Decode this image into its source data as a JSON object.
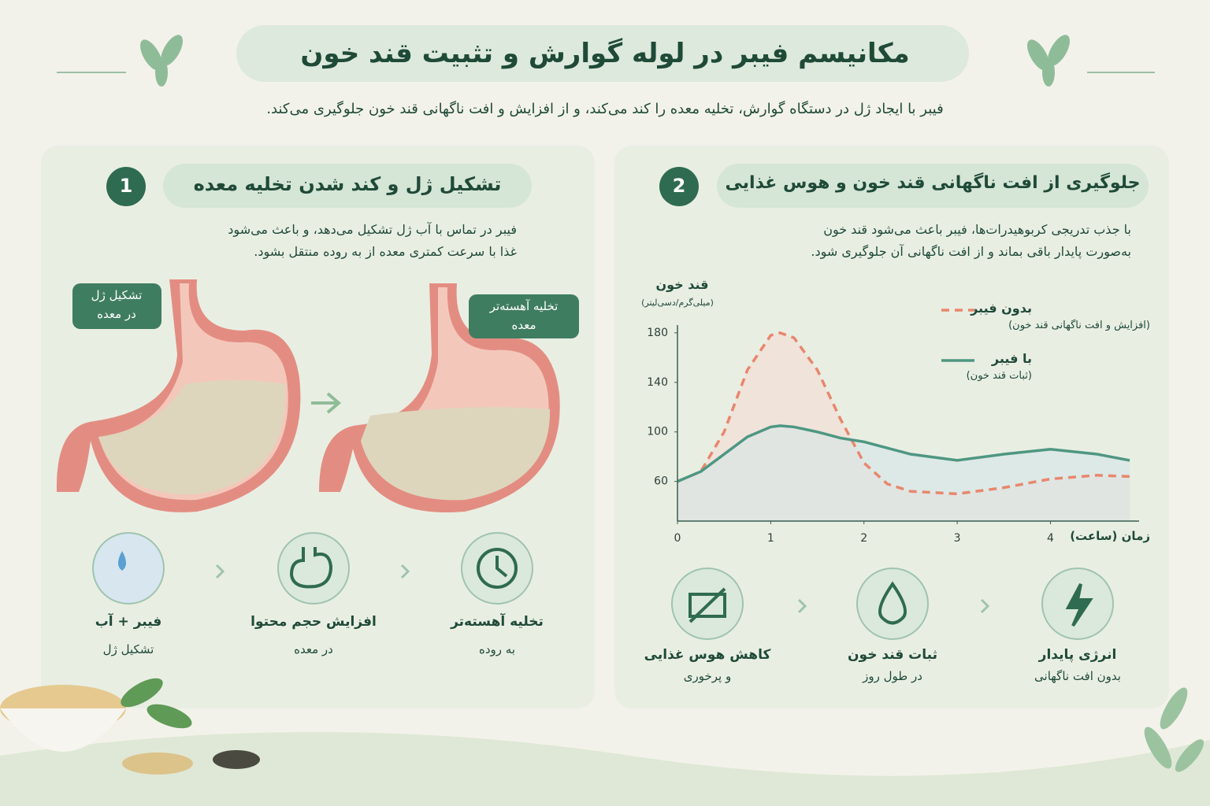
{
  "header": {
    "title": "مکانیسم فیبر در لوله گوارش و تثبیت قند خون",
    "subtitle": "فیبر با ایجاد ژل در دستگاه گوارش، تخلیه معده را کند می‌کند، و از افزایش و افت ناگهانی قند خون جلوگیری می‌کند."
  },
  "panels": [
    {
      "number": "1",
      "title": "تشکیل ژل و کند شدن تخلیه معده",
      "text": [
        "فیبر در تماس با آب ژل تشکیل می‌دهد، و باعث می‌شود",
        "غذا با سرعت کمتری معده از به روده منتقل بشود."
      ],
      "labels": [
        [
          "تشکیل ژل",
          "در معده"
        ],
        [
          "تخلیه آهسته‌تر",
          "معده"
        ]
      ],
      "steps": [
        {
          "title": "فیبر + آب",
          "subtitle": "تشکیل ژل"
        },
        {
          "title": "افزایش حجم محتوا",
          "subtitle": "در معده"
        },
        {
          "title": "تخلیه آهسته‌تر",
          "subtitle": "به روده"
        }
      ]
    },
    {
      "number": "2",
      "title": "جلوگیری از افت ناگهانی قند خون و هوس غذایی",
      "text": [
        "با جذب تدریجی کربوهیدرات‌ها، فیبر باعث می‌شود قند خون",
        "به‌صورت پایدار باقی بماند و از افت ناگهانی آن جلوگیری شود."
      ],
      "steps": [
        {
          "title": "کاهش هوس غذایی",
          "subtitle": "و پرخوری"
        },
        {
          "title": "ثبات قند خون",
          "subtitle": "در طول روز"
        },
        {
          "title": "انرژی پایدار",
          "subtitle": "بدون افت ناگهانی"
        }
      ]
    }
  ],
  "chart_data": {
    "type": "line",
    "y_label": "قند خون",
    "y_unit": "(میلی‌گرم/دسی‌لیتر)",
    "x_label": "زمان (ساعت)",
    "x": [
      0,
      0.25,
      0.5,
      0.75,
      1,
      1.1,
      1.25,
      1.5,
      1.75,
      2,
      2.25,
      2.5,
      3,
      3.5,
      4,
      4.5,
      4.85
    ],
    "series": [
      {
        "name": "بدون فیبر",
        "note": "(افزایش و افت ناگهانی قند خون)",
        "color": "#e8876d",
        "dashed": true,
        "values": [
          60,
          68,
          100,
          150,
          178,
          180,
          176,
          150,
          110,
          75,
          58,
          52,
          50,
          55,
          62,
          65,
          64
        ]
      },
      {
        "name": "با فیبر",
        "note": "(ثبات قند خون)",
        "color": "#4e9782",
        "dashed": false,
        "values": [
          60,
          68,
          82,
          96,
          104,
          105,
          104,
          100,
          95,
          92,
          87,
          82,
          77,
          82,
          86,
          82,
          77
        ]
      }
    ],
    "xlim": [
      0,
      4.9
    ],
    "ylim": [
      28,
      185
    ],
    "xticks": [
      0,
      1,
      2,
      3,
      4
    ],
    "yticks": [
      60,
      100,
      140,
      180
    ]
  }
}
